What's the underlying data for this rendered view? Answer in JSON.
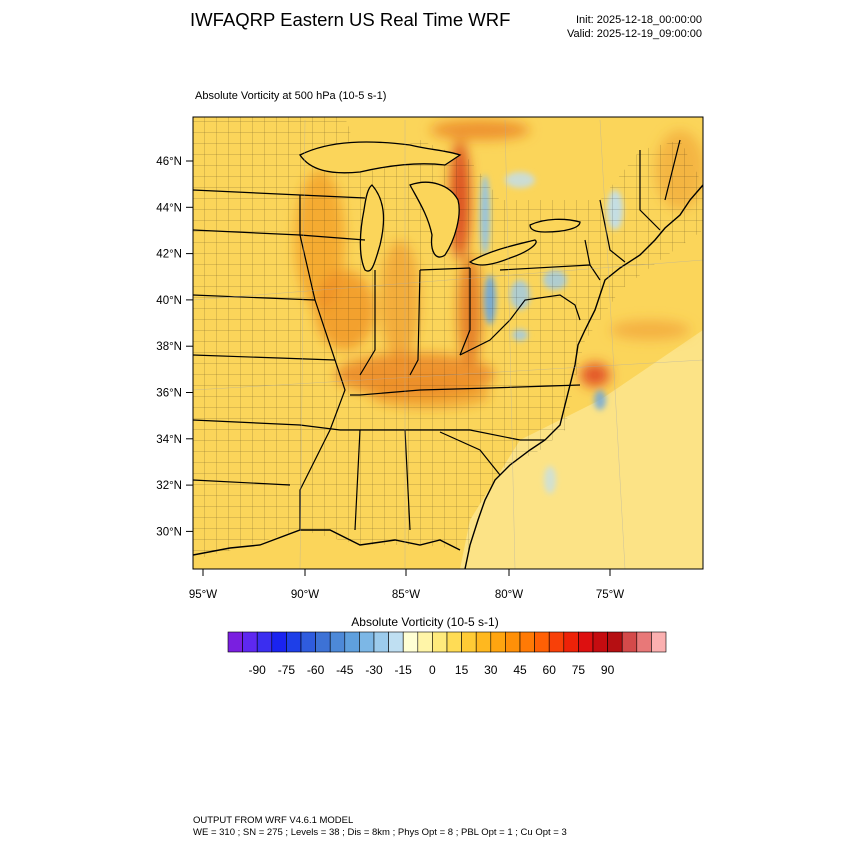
{
  "header": {
    "title": "IWFAQRP Eastern US Real Time WRF",
    "init": "Init: 2025-12-18_00:00:00",
    "valid": "Valid: 2025-12-19_09:00:00"
  },
  "map": {
    "field_title": "Absolute Vorticity at 500 hPa   (10-5 s-1)",
    "lat_labels": [
      "46°N",
      "44°N",
      "42°N",
      "40°N",
      "38°N",
      "36°N",
      "34°N",
      "32°N",
      "30°N"
    ],
    "lon_labels": [
      "95°W",
      "90°W",
      "85°W",
      "80°W",
      "75°W"
    ],
    "colors": {
      "land_base": "#fbd55a",
      "ocean_base": "#fce58e",
      "boundary": "#000000"
    }
  },
  "colorbar": {
    "title": "Absolute Vorticity  (10-5 s-1)",
    "tick_labels": [
      "-90",
      "-75",
      "-60",
      "-45",
      "-30",
      "-15",
      "0",
      "15",
      "30",
      "45",
      "60",
      "75",
      "90"
    ],
    "colors": [
      "#7a1fe0",
      "#5e28f0",
      "#3b2ef0",
      "#1a23f0",
      "#1e3fe8",
      "#2f5cde",
      "#3d72d6",
      "#4d89d8",
      "#5fa0de",
      "#7cb7e6",
      "#9ccbec",
      "#bfdff2",
      "#ffffd4",
      "#fff5a8",
      "#ffea7c",
      "#ffdc55",
      "#ffcb35",
      "#ffb81f",
      "#ffa510",
      "#ff9008",
      "#ff7a05",
      "#ff6005",
      "#f84008",
      "#ee2208",
      "#dd1010",
      "#c50c10",
      "#b50f12",
      "#d44a4a",
      "#e87878",
      "#fbb0b0"
    ]
  },
  "footer": {
    "line1": "OUTPUT FROM WRF V4.6.1 MODEL",
    "line2": "WE = 310 ; SN = 275 ; Levels = 38 ; Dis = 8km ; Phys Opt = 8 ; PBL Opt = 1 ; Cu Opt = 3"
  }
}
